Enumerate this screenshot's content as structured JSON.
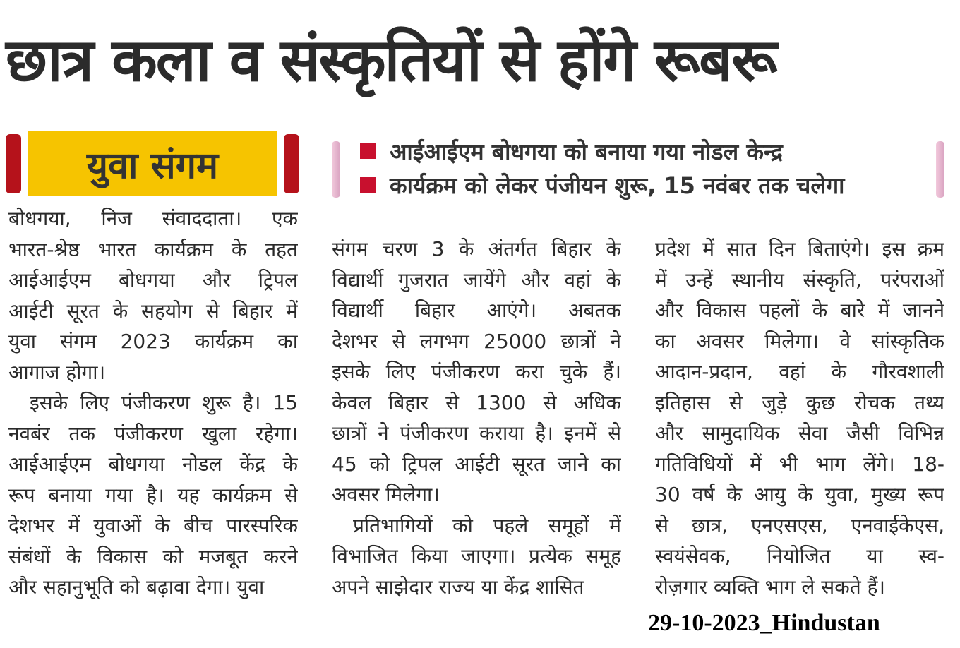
{
  "headline": "छात्र कला व संस्कृतियों से होंगे रूबरू",
  "tag_label": "युवा संगम",
  "highlights": [
    "आईआईएम बोधगया को बनाया गया नोडल केन्द्र",
    "कार्यक्रम को लेकर पंजीयन शुरू, 15  नवंबर तक चलेगा"
  ],
  "columns": [
    [
      "बोधगया, निज संवाददाता।  एक",
      "भारत-श्रेष्ठ भारत कार्यक्रम के तहत",
      "आईआईएम बोधगया और ट्रिपल",
      "आईटी सूरत के सहयोग से बिहार में",
      "युवा संगम 2023 कार्यक्रम का",
      "आगाज होगा।",
      "इसके लिए पंजीकरण शुरू है। 15",
      "नवबंर तक पंजीकरण खुला रहेगा।",
      "आईआईएम बोधगया नोडल केंद्र के",
      "रूप बनाया गया है। यह कार्यक्रम से",
      "देशभर में युवाओं के बीच पारस्परिक",
      "संबंधों के विकास को मजबूत करने",
      "और सहानुभूति को बढ़ावा देगा। युवा"
    ],
    [
      "संगम चरण 3 के अंतर्गत बिहार के",
      "विद्यार्थी गुजरात जायेंगे और वहां के",
      "विद्यार्थी बिहार आएंगे। अबतक",
      "देशभर से लगभग 25000 छात्रों ने",
      "इसके लिए पंजीकरण करा चुके हैं।",
      "केवल बिहार से 1300 से अधिक",
      "छात्रों ने पंजीकरण कराया है। इनमें से",
      "45 को ट्रिपल आईटी सूरत जाने का",
      "अवसर मिलेगा।",
      "प्रतिभागियों को पहले समूहों में",
      "विभाजित किया जाएगा। प्रत्येक समूह",
      "अपने साझेदार राज्य या केंद्र शासित"
    ],
    [
      "प्रदेश में सात दिन बिताएंगे। इस क्रम",
      "में उन्हें स्थानीय संस्कृति, परंपराओं",
      "और विकास पहलों के बारे में जानने",
      "का अवसर मिलेगा। वे सांस्कृतिक",
      "आदान-प्रदान, वहां के गौरवशाली",
      "इतिहास से जुड़े कुछ रोचक तथ्य",
      "और सामुदायिक सेवा जैसी विभिन्न",
      "गतिविधियों में भी भाग लेंगे। 18-",
      "30 वर्ष के आयु के युवा, मुख्य रूप",
      "से छात्र, एनएसएस, एनवाईकेएस,",
      "स्वयंसेवक, नियोजित या स्व-",
      "रोज़गार व्यक्ति भाग ले सकते हैं।"
    ]
  ],
  "footer": "29-10-2023_Hindustan",
  "colors": {
    "tag_bg": "#f6c400",
    "accent_red": "#c8102e",
    "cap_red": "#b5121b"
  }
}
